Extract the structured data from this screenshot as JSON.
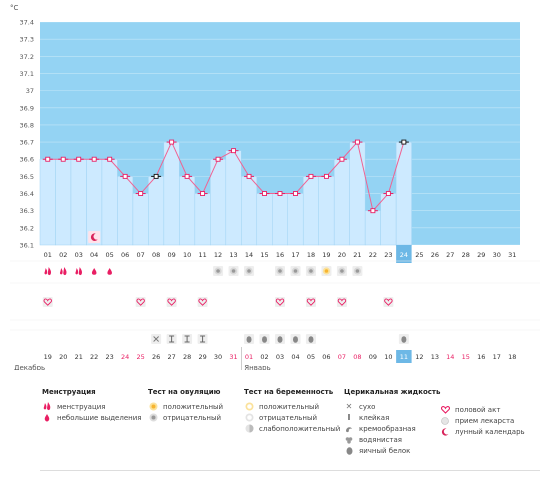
{
  "chart_data": {
    "type": "line",
    "ylabel": "°C",
    "ylim": [
      36.1,
      37.4
    ],
    "y_ticks": [
      "36.1",
      "36.2",
      "36.3",
      "36.4",
      "36.5",
      "36.6",
      "36.7",
      "36.8",
      "36.9",
      "37",
      "37.1",
      "37.2",
      "37.3",
      "37.4"
    ],
    "cycle_days": [
      "01",
      "02",
      "03",
      "04",
      "05",
      "06",
      "07",
      "08",
      "09",
      "10",
      "11",
      "12",
      "13",
      "14",
      "15",
      "16",
      "17",
      "18",
      "19",
      "20",
      "21",
      "22",
      "23",
      "24",
      "25",
      "26",
      "27",
      "28",
      "29",
      "30",
      "31"
    ],
    "dates": [
      "19",
      "20",
      "21",
      "22",
      "23",
      "24",
      "25",
      "26",
      "27",
      "28",
      "29",
      "30",
      "31",
      "01",
      "02",
      "03",
      "04",
      "05",
      "06",
      "07",
      "08",
      "09",
      "10",
      "11",
      "12",
      "13",
      "14",
      "15",
      "16",
      "17",
      "18"
    ],
    "red_dates": [
      5,
      6,
      12,
      13,
      19,
      20,
      26,
      27
    ],
    "current_day_index": 23,
    "months": [
      {
        "label": "Декабрь",
        "start": 0
      },
      {
        "label": "Январь",
        "start": 13
      }
    ],
    "temperatures": [
      36.6,
      36.6,
      36.6,
      36.6,
      36.6,
      36.5,
      36.4,
      36.5,
      36.7,
      36.5,
      36.4,
      36.6,
      36.65,
      36.5,
      36.4,
      36.4,
      36.4,
      36.5,
      36.5,
      36.6,
      36.7,
      36.3,
      36.4,
      36.7
    ],
    "point_types": [
      "pink",
      "pink",
      "pink",
      "pink",
      "pink",
      "pink",
      "pink",
      "black",
      "pink",
      "pink",
      "pink",
      "pink",
      "pink",
      "pink",
      "pink",
      "pink",
      "pink",
      "pink",
      "pink",
      "pink",
      "pink",
      "pink",
      "pink",
      "black"
    ],
    "tick_labels_bottom": "days and dates",
    "grid": true,
    "colors": {
      "background": "#94d3f3",
      "bar": "#cdeaff",
      "bar_border": "#9fd3f3",
      "line": "#f06292",
      "point": "#e91e63",
      "red_date": "#e91e63",
      "today": "#6db8e6"
    }
  },
  "rows": {
    "menstruation": [
      "heavy",
      "heavy",
      "heavy",
      "light",
      "light",
      "",
      "",
      "",
      "",
      "",
      "",
      "",
      "",
      "",
      "",
      "",
      "",
      "",
      "",
      "",
      "",
      "",
      "",
      "",
      "",
      "",
      "",
      "",
      "",
      "",
      ""
    ],
    "calendar_marker": [
      "",
      "",
      "",
      "lunar",
      "",
      "",
      "",
      "",
      "",
      "",
      "",
      "",
      "",
      "",
      "",
      "",
      "",
      "",
      "",
      "",
      "",
      "",
      "",
      "",
      "",
      "",
      "",
      "",
      "",
      "",
      ""
    ],
    "ovulation": [
      "",
      "",
      "",
      "",
      "",
      "",
      "",
      "",
      "",
      "",
      "",
      "neg",
      "neg",
      "neg",
      "",
      "neg",
      "neg",
      "neg",
      "pos",
      "neg",
      "neg",
      "",
      "",
      "",
      "",
      "",
      "",
      "",
      "",
      "",
      ""
    ],
    "intercourse": [
      "heart",
      "",
      "",
      "",
      "",
      "",
      "heart",
      "",
      "heart",
      "",
      "heart",
      "",
      "",
      "",
      "",
      "heart",
      "",
      "heart",
      "",
      "heart",
      "",
      "",
      "heart",
      "",
      "",
      "",
      "",
      "",
      "",
      "",
      ""
    ],
    "cervical": [
      "",
      "",
      "",
      "",
      "",
      "",
      "",
      "dry",
      "sticky",
      "sticky",
      "sticky",
      "",
      "",
      "eggwhite",
      "eggwhite",
      "eggwhite",
      "eggwhite",
      "eggwhite",
      "",
      "",
      "",
      "",
      "",
      "eggwhite",
      "",
      "",
      "",
      "",
      "",
      "",
      ""
    ]
  },
  "legend": {
    "groups": [
      {
        "title": "Менструация",
        "items": [
          {
            "icon": "drop-heavy-icon",
            "label": "менструация"
          },
          {
            "icon": "drop-light-icon",
            "label": "небольшие выделения"
          }
        ]
      },
      {
        "title": "Тест на овуляцию",
        "items": [
          {
            "icon": "ovulation-positive-icon",
            "label": "положительный"
          },
          {
            "icon": "ovulation-negative-icon",
            "label": "отрицательный"
          }
        ]
      },
      {
        "title": "Тест на беременность",
        "items": [
          {
            "icon": "pregnancy-positive-icon",
            "label": "положительный"
          },
          {
            "icon": "pregnancy-negative-icon",
            "label": "отрицательный"
          },
          {
            "icon": "pregnancy-faint-icon",
            "label": "слабоположительный"
          }
        ]
      },
      {
        "title": "Церикальная жидкость",
        "items": [
          {
            "icon": "dry-icon",
            "label": "сухо"
          },
          {
            "icon": "sticky-icon",
            "label": "клейкая"
          },
          {
            "icon": "creamy-icon",
            "label": "кремообразная"
          },
          {
            "icon": "watery-icon",
            "label": "водянистая"
          },
          {
            "icon": "eggwhite-icon",
            "label": "яичный белок"
          }
        ]
      },
      {
        "title": "",
        "items": [
          {
            "icon": "heart-icon",
            "label": "половой акт"
          },
          {
            "icon": "pill-icon",
            "label": "прием лекарста"
          },
          {
            "icon": "moon-icon",
            "label": "лунный календарь"
          }
        ]
      }
    ]
  }
}
